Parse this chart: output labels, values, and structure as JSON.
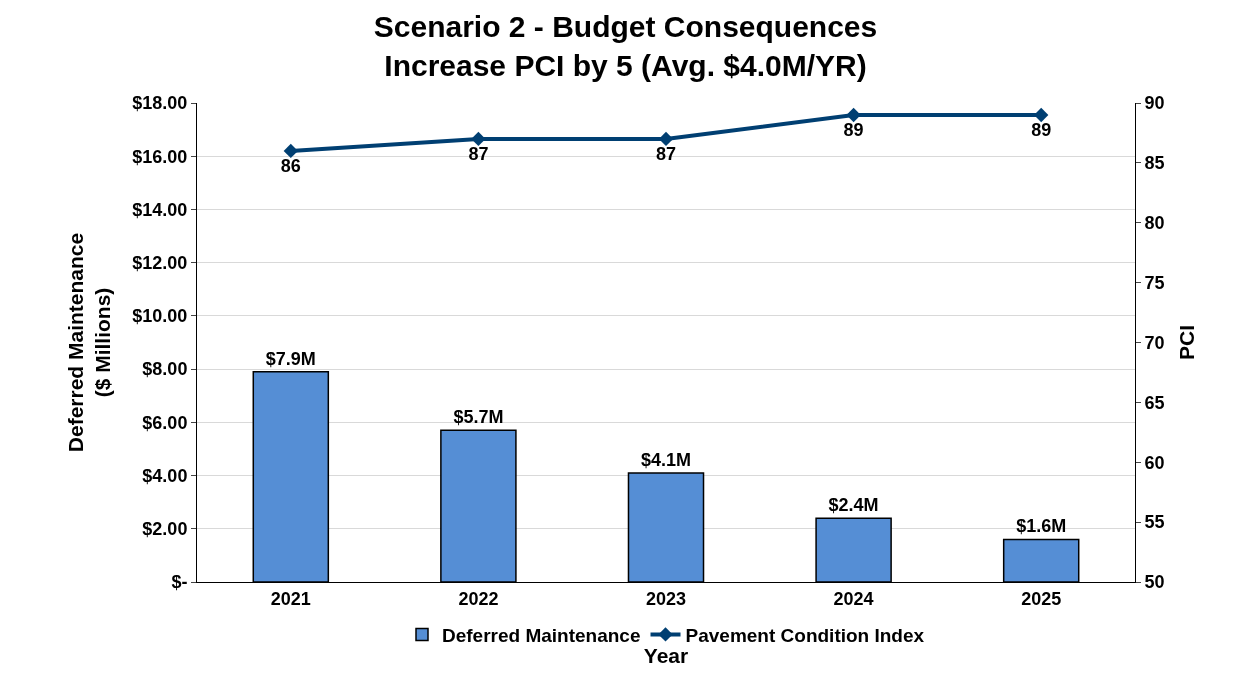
{
  "chart_data": {
    "type": "bar",
    "title": "Scenario 2 - Budget Consequences\nIncrease PCI by 5 (Avg. $4.0M/YR)",
    "xlabel": "Year",
    "ylabel": "Deferred Maintenance\n($ Millions)",
    "y2label": "PCI",
    "categories": [
      "2021",
      "2022",
      "2023",
      "2024",
      "2025"
    ],
    "series": [
      {
        "name": "Deferred Maintenance",
        "color": "#558ed5",
        "values": [
          7.9,
          5.7,
          4.1,
          2.4,
          1.6
        ],
        "value_labels": [
          "$7.9M",
          "$5.7M",
          "$4.1M",
          "$2.4M",
          "$1.6M"
        ]
      },
      {
        "name": "Pavement Condition Index",
        "type": "line",
        "axis": "y2",
        "color": "#003f72",
        "marker": "diamond",
        "values": [
          86,
          87,
          87,
          89,
          89
        ],
        "value_labels": [
          "86",
          "87",
          "87",
          "89",
          "89"
        ]
      }
    ],
    "ylim": [
      0,
      18
    ],
    "yticks": [
      {
        "value": 0,
        "label": "$-"
      },
      {
        "value": 2,
        "label": "$2.00"
      },
      {
        "value": 4,
        "label": "$4.00"
      },
      {
        "value": 6,
        "label": "$6.00"
      },
      {
        "value": 8,
        "label": "$8.00"
      },
      {
        "value": 10,
        "label": "$10.00"
      },
      {
        "value": 12,
        "label": "$12.00"
      },
      {
        "value": 14,
        "label": "$14.00"
      },
      {
        "value": 16,
        "label": "$16.00"
      },
      {
        "value": 18,
        "label": "$18.00"
      }
    ],
    "y2lim": [
      50,
      90
    ],
    "y2ticks": [
      50,
      55,
      60,
      65,
      70,
      75,
      80,
      85,
      90
    ],
    "grid": "y",
    "legend": "bottom"
  }
}
